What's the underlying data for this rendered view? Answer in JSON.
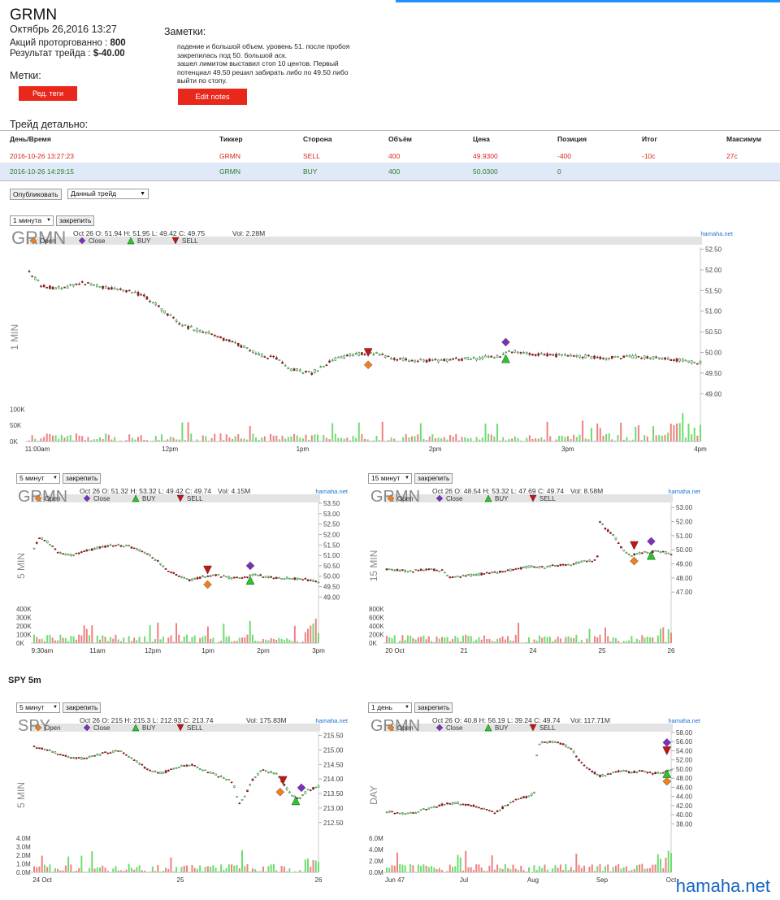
{
  "header": {
    "ticker": "GRMN",
    "datetime": "Октябрь 26,2016 13:27",
    "shares_label": "Акций проторгованно :",
    "shares_value": "800",
    "result_label": "Результат трейда :",
    "result_value": "$-40.00",
    "tags_label": "Метки:",
    "tags_button": "Ред. теги",
    "notes_label": "Заметки:",
    "notes_text": "падение и большой объем. уровень 51. после пробоя\nзакрепилась под 50. большой аск.\nзашел лимитом выставил стоп 10 центов. Первый\nпотенциал 49.50 решил забирать либо по 49.50 либо\nвыйти по стопу.",
    "edit_notes_button": "Edit notes"
  },
  "trade_table": {
    "title": "Трейд детально:",
    "columns": [
      "День/Время",
      "Тиккер",
      "Сторона",
      "Объём",
      "Цена",
      "Позиция",
      "Итог",
      "Максимум"
    ],
    "rows": [
      [
        "2016-10-26 13:27:23",
        "GRMN",
        "SELL",
        "400",
        "49.9300",
        "-400",
        "-10c",
        "27c"
      ],
      [
        "2016-10-26 14:29:15",
        "GRMN",
        "BUY",
        "400",
        "50.0300",
        "0",
        "",
        ""
      ]
    ]
  },
  "toolbar": {
    "publish_button": "Опубликовать",
    "trade_select": "Данный трейд"
  },
  "legend": {
    "open": "Open",
    "close": "Close",
    "buy": "BUY",
    "sell": "SELL"
  },
  "section_label": "SPY 5m",
  "watermark": "hamaha.net",
  "colors": {
    "up": "#2e8b2e",
    "down": "#8b1a1a",
    "vol_up": "#6fdc6f",
    "vol_down": "#f08080",
    "buy": "#22cc22",
    "sell": "#cc1111",
    "open": "#f07f1d",
    "close": "#7b2fbe",
    "accent_red": "#e8281a"
  },
  "chart_data": [
    {
      "id": "c1",
      "type": "candlestick",
      "interval_select": "1 минута",
      "pin_button": "закрепить",
      "symbol": "GRMN",
      "ylabel": "1 MIN",
      "source": "hamaha.net",
      "info": "Oct 26 O: 51.94 H: 51.95 L: 49.42 C: 49.75",
      "vol_info": "Vol: 2.28M",
      "ylim": [
        48.9,
        52.55
      ],
      "yticks": [
        "52.50",
        "52.00",
        "51.50",
        "51.00",
        "50.50",
        "50.00",
        "49.50",
        "49.00"
      ],
      "vol_ticks": [
        "100K",
        "50K",
        "0K"
      ],
      "vol_max": 100000,
      "xticks": [
        "11:00am",
        "12pm",
        "1pm",
        "2pm",
        "3pm",
        "4pm"
      ],
      "path": [
        [
          0,
          51.95
        ],
        [
          0.02,
          51.6
        ],
        [
          0.05,
          51.55
        ],
        [
          0.08,
          51.7
        ],
        [
          0.12,
          51.55
        ],
        [
          0.17,
          51.4
        ],
        [
          0.2,
          51.0
        ],
        [
          0.23,
          50.65
        ],
        [
          0.27,
          50.45
        ],
        [
          0.31,
          50.2
        ],
        [
          0.34,
          49.95
        ],
        [
          0.37,
          49.85
        ],
        [
          0.39,
          49.6
        ],
        [
          0.42,
          49.5
        ],
        [
          0.45,
          49.8
        ],
        [
          0.48,
          49.95
        ],
        [
          0.52,
          49.98
        ],
        [
          0.54,
          49.85
        ],
        [
          0.58,
          49.8
        ],
        [
          0.62,
          49.82
        ],
        [
          0.66,
          49.85
        ],
        [
          0.7,
          49.9
        ],
        [
          0.72,
          50.05
        ],
        [
          0.75,
          49.95
        ],
        [
          0.8,
          49.92
        ],
        [
          0.86,
          49.88
        ],
        [
          0.9,
          49.9
        ],
        [
          0.95,
          49.85
        ],
        [
          1.0,
          49.75
        ]
      ],
      "markers": [
        {
          "type": "sell",
          "x": 0.505,
          "price": 50.0
        },
        {
          "type": "open",
          "x": 0.505,
          "price": 49.7
        },
        {
          "type": "close",
          "x": 0.71,
          "price": 50.25
        },
        {
          "type": "buy",
          "x": 0.71,
          "price": 49.85
        }
      ]
    },
    {
      "id": "c2",
      "type": "candlestick",
      "interval_select": "5 минут",
      "pin_button": "закрепить",
      "symbol": "GRMN",
      "ylabel": "5 MIN",
      "source": "hamaha.net",
      "info": "Oct 26 O: 51.32 H: 53.32 L: 49.42 C: 49.74",
      "vol_info": "Vol: 4.15M",
      "ylim": [
        48.9,
        53.5
      ],
      "yticks": [
        "53.50",
        "53.00",
        "52.50",
        "52.00",
        "51.50",
        "51.00",
        "50.50",
        "50.00",
        "49.50",
        "49.00"
      ],
      "vol_ticks": [
        "400K",
        "300K",
        "200K",
        "100K",
        "0K"
      ],
      "vol_max": 400000,
      "xticks": [
        "9:30am",
        "11am",
        "12pm",
        "1pm",
        "2pm",
        "3pm"
      ],
      "path": [
        [
          0,
          51.3
        ],
        [
          0.02,
          51.9
        ],
        [
          0.05,
          51.6
        ],
        [
          0.08,
          51.2
        ],
        [
          0.12,
          51.0
        ],
        [
          0.17,
          51.15
        ],
        [
          0.22,
          51.35
        ],
        [
          0.28,
          51.5
        ],
        [
          0.33,
          51.45
        ],
        [
          0.38,
          51.2
        ],
        [
          0.42,
          50.9
        ],
        [
          0.46,
          50.4
        ],
        [
          0.5,
          50.05
        ],
        [
          0.55,
          49.8
        ],
        [
          0.6,
          50.0
        ],
        [
          0.63,
          50.1
        ],
        [
          0.66,
          50.0
        ],
        [
          0.7,
          49.9
        ],
        [
          0.74,
          49.95
        ],
        [
          0.78,
          50.1
        ],
        [
          0.82,
          49.95
        ],
        [
          0.88,
          49.9
        ],
        [
          0.94,
          49.88
        ],
        [
          1.0,
          49.75
        ]
      ],
      "markers": [
        {
          "type": "sell",
          "x": 0.61,
          "price": 50.3
        },
        {
          "type": "open",
          "x": 0.61,
          "price": 49.6
        },
        {
          "type": "close",
          "x": 0.76,
          "price": 50.5
        },
        {
          "type": "buy",
          "x": 0.76,
          "price": 49.8
        }
      ]
    },
    {
      "id": "c3",
      "type": "candlestick",
      "interval_select": "15 минут",
      "pin_button": "закрепить",
      "symbol": "GRMN",
      "ylabel": "15 MIN",
      "source": "hamaha.net",
      "info": "Oct 26 O: 48.54 H: 53.32 L: 47.69 C: 49.74",
      "vol_info": "Vol: 8.58M",
      "ylim": [
        46.5,
        53.3
      ],
      "yticks": [
        "53.00",
        "52.00",
        "51.00",
        "50.00",
        "49.00",
        "48.00",
        "47.00"
      ],
      "vol_ticks": [
        "800K",
        "600K",
        "400K",
        "200K",
        "0K"
      ],
      "vol_max": 800000,
      "xticks": [
        "20 Oct",
        "21",
        "24",
        "25",
        "26"
      ],
      "path": [
        [
          0,
          48.6
        ],
        [
          0.08,
          48.5
        ],
        [
          0.15,
          48.6
        ],
        [
          0.2,
          48.5
        ],
        [
          0.22,
          48.0
        ],
        [
          0.3,
          48.2
        ],
        [
          0.38,
          48.4
        ],
        [
          0.45,
          48.6
        ],
        [
          0.5,
          48.8
        ],
        [
          0.55,
          48.75
        ],
        [
          0.6,
          48.9
        ],
        [
          0.65,
          49.0
        ],
        [
          0.7,
          49.2
        ],
        [
          0.74,
          49.3
        ],
        [
          0.75,
          52.0
        ],
        [
          0.77,
          51.5
        ],
        [
          0.8,
          51.0
        ],
        [
          0.83,
          50.0
        ],
        [
          0.86,
          49.6
        ],
        [
          0.9,
          49.8
        ],
        [
          0.95,
          49.9
        ],
        [
          1.0,
          49.74
        ]
      ],
      "markers": [
        {
          "type": "sell",
          "x": 0.87,
          "price": 50.3
        },
        {
          "type": "open",
          "x": 0.87,
          "price": 49.2
        },
        {
          "type": "close",
          "x": 0.93,
          "price": 50.6
        },
        {
          "type": "buy",
          "x": 0.93,
          "price": 49.6
        }
      ]
    },
    {
      "id": "c4",
      "type": "candlestick",
      "interval_select": "5 минут",
      "pin_button": "закрепить",
      "symbol": "SPY",
      "ylabel": "5 MIN",
      "source": "hamaha.net",
      "info": "Oct 26 O: 215 H: 215.3 L: 212.93 C: 213.74",
      "vol_info": "Vol: 175.83M",
      "ylim": [
        212.3,
        215.6
      ],
      "yticks": [
        "215.50",
        "215.00",
        "214.50",
        "214.00",
        "213.50",
        "213.00",
        "212.50"
      ],
      "vol_ticks": [
        "4.0M",
        "3.0M",
        "2.0M",
        "1.0M",
        "0.0M"
      ],
      "vol_max": 4000000,
      "xticks": [
        "24 Oct",
        "25",
        "26"
      ],
      "path": [
        [
          0,
          215.1
        ],
        [
          0.05,
          215.0
        ],
        [
          0.1,
          214.8
        ],
        [
          0.15,
          214.7
        ],
        [
          0.2,
          214.75
        ],
        [
          0.25,
          214.9
        ],
        [
          0.3,
          215.0
        ],
        [
          0.35,
          214.7
        ],
        [
          0.4,
          214.3
        ],
        [
          0.45,
          214.2
        ],
        [
          0.5,
          214.4
        ],
        [
          0.55,
          214.5
        ],
        [
          0.6,
          214.3
        ],
        [
          0.65,
          214.1
        ],
        [
          0.7,
          213.9
        ],
        [
          0.72,
          213.1
        ],
        [
          0.74,
          213.4
        ],
        [
          0.77,
          214.0
        ],
        [
          0.8,
          214.3
        ],
        [
          0.85,
          214.2
        ],
        [
          0.88,
          213.8
        ],
        [
          0.9,
          213.5
        ],
        [
          0.93,
          213.3
        ],
        [
          0.96,
          213.6
        ],
        [
          1.0,
          213.74
        ]
      ],
      "markers": [
        {
          "type": "sell",
          "x": 0.875,
          "price": 213.95
        },
        {
          "type": "open",
          "x": 0.865,
          "price": 213.55
        },
        {
          "type": "close",
          "x": 0.94,
          "price": 213.7
        },
        {
          "type": "buy",
          "x": 0.92,
          "price": 213.25
        }
      ]
    },
    {
      "id": "c5",
      "type": "candlestick",
      "interval_select": "1 день",
      "pin_button": "закрепить",
      "symbol": "GRMN",
      "ylabel": "DAY",
      "source": "hamaha.net",
      "info": "Oct 26 O: 40.8 H: 56.19 L: 39.24 C: 49.74",
      "vol_info": "Vol: 117.71M",
      "ylim": [
        37,
        58
      ],
      "yticks": [
        "58.00",
        "56.00",
        "54.00",
        "52.00",
        "50.00",
        "48.00",
        "46.00",
        "44.00",
        "42.00",
        "40.00",
        "38.00"
      ],
      "vol_ticks": [
        "6.0M",
        "4.0M",
        "2.0M",
        "0.0M"
      ],
      "vol_max": 6000000,
      "xticks": [
        "Jun 47",
        "Jul",
        "Aug",
        "Sep",
        "Oct"
      ],
      "path": [
        [
          0,
          40.8
        ],
        [
          0.05,
          40.2
        ],
        [
          0.1,
          40.5
        ],
        [
          0.15,
          41.5
        ],
        [
          0.2,
          42.3
        ],
        [
          0.25,
          42.6
        ],
        [
          0.3,
          42.0
        ],
        [
          0.35,
          41.3
        ],
        [
          0.38,
          40.5
        ],
        [
          0.42,
          42.0
        ],
        [
          0.46,
          43.5
        ],
        [
          0.5,
          44.0
        ],
        [
          0.52,
          45.0
        ],
        [
          0.53,
          55.5
        ],
        [
          0.57,
          56.0
        ],
        [
          0.62,
          55.5
        ],
        [
          0.65,
          54.5
        ],
        [
          0.68,
          51.5
        ],
        [
          0.72,
          49.5
        ],
        [
          0.75,
          48.5
        ],
        [
          0.78,
          48.8
        ],
        [
          0.82,
          49.6
        ],
        [
          0.86,
          49.3
        ],
        [
          0.9,
          49.5
        ],
        [
          0.94,
          49.0
        ],
        [
          0.97,
          49.2
        ],
        [
          1.0,
          49.74
        ]
      ],
      "markers": [
        {
          "type": "close",
          "x": 0.985,
          "price": 55.8
        },
        {
          "type": "sell",
          "x": 0.985,
          "price": 54.0
        },
        {
          "type": "buy",
          "x": 0.985,
          "price": 49.0
        },
        {
          "type": "open",
          "x": 0.985,
          "price": 47.3
        }
      ]
    }
  ]
}
